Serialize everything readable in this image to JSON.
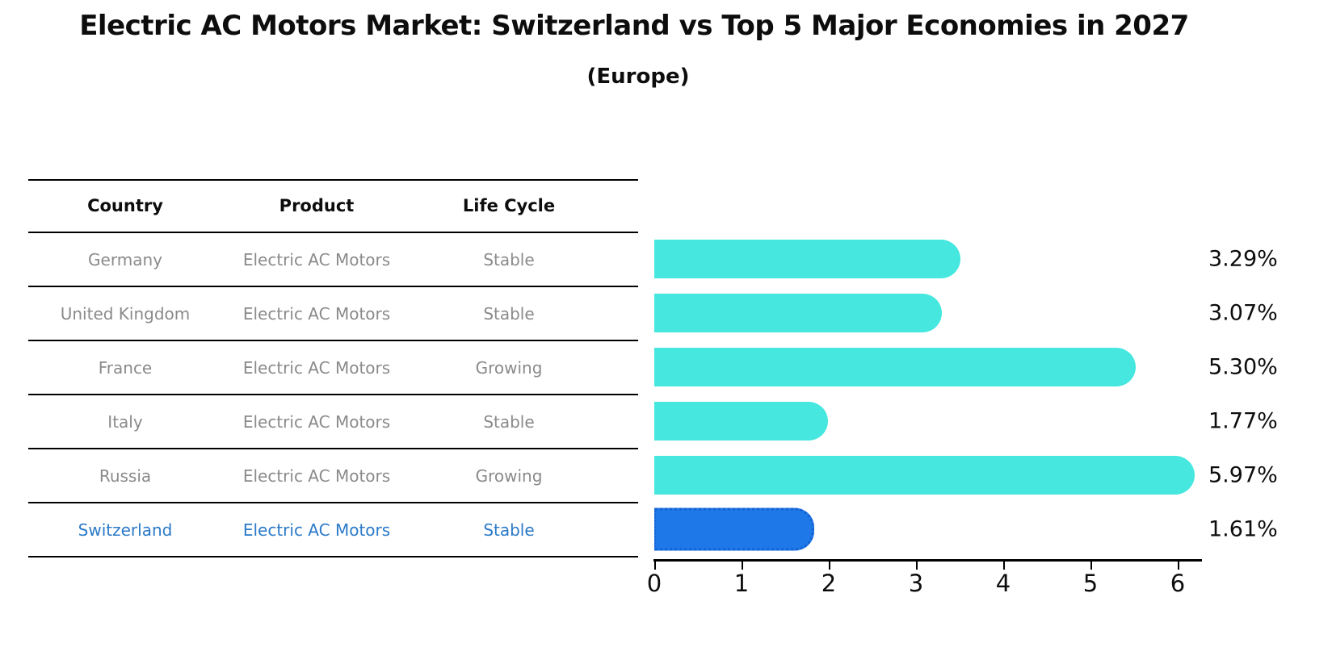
{
  "title": "Electric AC Motors Market: Switzerland vs Top 5 Major Economies in 2027",
  "subtitle": "(Europe)",
  "table": {
    "headers": [
      "Country",
      "Product",
      "Life Cycle"
    ],
    "rows": [
      {
        "country": "Germany",
        "product": "Electric AC Motors",
        "life_cycle": "Stable",
        "highlight": false
      },
      {
        "country": "United Kingdom",
        "product": "Electric AC Motors",
        "life_cycle": "Stable",
        "highlight": false
      },
      {
        "country": "France",
        "product": "Electric AC Motors",
        "life_cycle": "Growing",
        "highlight": false
      },
      {
        "country": "Italy",
        "product": "Electric AC Motors",
        "life_cycle": "Stable",
        "highlight": false
      },
      {
        "country": "Russia",
        "product": "Electric AC Motors",
        "life_cycle": "Growing",
        "highlight": false
      },
      {
        "country": "Switzerland",
        "product": "Electric AC Motors",
        "life_cycle": "Stable",
        "highlight": true
      }
    ]
  },
  "chart_data": {
    "type": "bar",
    "orientation": "horizontal",
    "title": "Electric AC Motors Market: Switzerland vs Top 5 Major Economies in 2027 (Europe)",
    "categories": [
      "Germany",
      "United Kingdom",
      "France",
      "Italy",
      "Russia",
      "Switzerland"
    ],
    "values": [
      3.29,
      3.07,
      5.3,
      1.77,
      5.97,
      1.61
    ],
    "labels": [
      "3.29%",
      "3.07%",
      "5.30%",
      "1.77%",
      "5.97%",
      "1.61%"
    ],
    "xlim": [
      0,
      6.28
    ],
    "xticks": [
      0,
      1,
      2,
      3,
      4,
      5,
      6
    ],
    "grid": false,
    "legend": "none",
    "highlight_index": 5,
    "bar_color": "#45e7df",
    "highlight_color": "#1e78e8",
    "highlight_border_color": "#1461d2",
    "highlight_text_color": "#2b7ac8",
    "row_text_color": "#8a8a8a"
  }
}
